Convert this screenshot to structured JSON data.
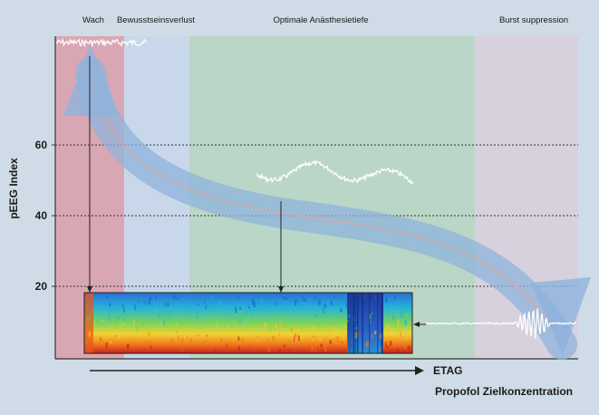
{
  "zones": [
    {
      "label": "Wach",
      "color": "#d9a7b3"
    },
    {
      "label": "Bewusstseinsverlust",
      "color": "#c8d8ea"
    },
    {
      "label": "Optimale Anästhesietiefe",
      "color": "#b9d6c6"
    },
    {
      "label": "Burst suppression",
      "color": "#d7d1de"
    }
  ],
  "y_axis": {
    "label": "pEEG Index",
    "ticks": [
      "60",
      "40",
      "20"
    ]
  },
  "x_axis": {
    "arrow_label": "ETAG",
    "label": "Propofol Zielkonzentration"
  },
  "colors": {
    "band": "#8fb3dc",
    "band_line": "#d9a7a0",
    "grid": "#333333",
    "axis": "#333333",
    "trace": "#ffffff"
  }
}
